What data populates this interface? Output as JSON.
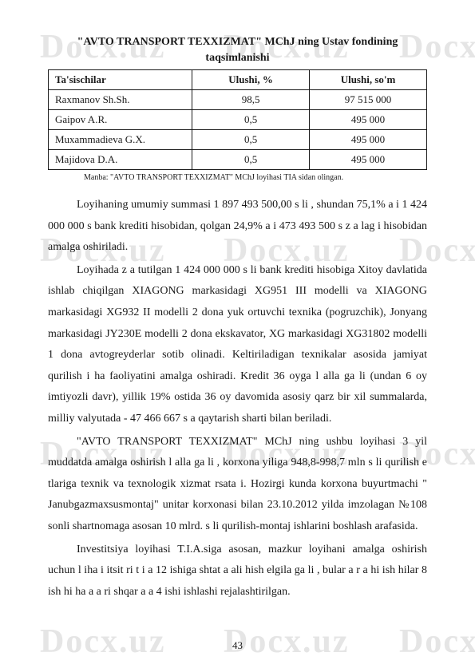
{
  "watermark": "Docx.uz",
  "title": "\"AVTO TRANSPORT TEXXIZMAT\" MChJ ning Ustav fondining",
  "subtitle": "taqsimlanishi",
  "table": {
    "columns": [
      "Ta'sischilar",
      "Ulushi, %",
      "Ulushi, so'm"
    ],
    "rows": [
      [
        "Raxmanov Sh.Sh.",
        "98,5",
        "97 515 000"
      ],
      [
        "Gaipov A.R.",
        "0,5",
        "495 000"
      ],
      [
        "Muxammadieva G.X.",
        "0,5",
        "495 000"
      ],
      [
        "Majidova D.A.",
        "0,5",
        "495 000"
      ]
    ],
    "col_align": [
      "left",
      "center",
      "center"
    ],
    "col_widths": [
      "38%",
      "31%",
      "31%"
    ],
    "border_color": "#1a1a1a"
  },
  "source_note": "Manba: \"AVTO TRANSPORT TEXXIZMAT\" MChJ loyihasi TIA sidan olingan.",
  "paragraphs": [
    "Loyihaning umumiy summasi 1 897 493 500,00 s   li , shundan 75,1% a i 1 424 000 000 s   bank krediti hisobidan, qolgan 24,9% a i 473 493 500 s   z a lag i hisobidan amalga oshiriladi.",
    "Loyihada   z a tutilgan 1 424 000 000 s  li  bank krediti hisobiga Xitoy davlatida ishlab chiqilgan  XIAGONG markasidagi XG951 III modelli va XIAGONG markasidagi  XG932 II modelli 2 dona yuk ortuvchi texnika (pogruzchik), Jonyang markasidagi  JY230E modelli 2 dona ekskavator, XG markasidagi XG31802 modelli 1 dona avtogreyderlar sotib olinadi. Keltiriladigan texnikalar asosida jamiyat qurilish   i ha faoliyatini amalga oshiradi. Kredit 36 oyga l alla ga   li  (undan 6 oy imtiyozli davr), yillik 19% ostida 36 oy davomida asosiy qarz bir xil summalarda, milliy valyutada -  47 466 667 s   a  qaytarish sharti bilan beriladi.",
    "\"AVTO TRANSPORT TEXXIZMAT\" MChJ ning ushbu loyihasi 3 yil muddatda amalga oshirish   l alla ga   li , korxona yiliga 948,8-998,7 mln s  li qurilish   e tlariga texnik va texnologik xizmat   rsata i. Hozirgi kunda korxona buyurtmachi \" Janubgazmaxsusmontaj\" unitar korxonasi bilan 23.10.2012 yilda imzolagan №108 sonli shartnomaga asosan 10 mlrd. s  li  qurilish-montaj ishlarini boshlash arafasida.",
    "Investitsiya loyihasi T.I.A.siga asosan, mazkur loyihani amalga oshirish uchun l iha i itsit ri t   i a  12  ishiga shtat a  ali   hish  elgila ga   li , bular a   r a  hi ish hilar 8 ish hi ha  a  a  ri   shqar a a 4  ishi ishlashi rejalashtirilgan."
  ],
  "page_number": "43",
  "colors": {
    "background": "#ffffff",
    "text": "#1a1a1a",
    "watermark": "rgba(180, 180, 180, 0.35)"
  },
  "fonts": {
    "body_family": "Times New Roman",
    "body_size": 14,
    "table_size": 13,
    "source_size": 10,
    "watermark_size": 42
  }
}
